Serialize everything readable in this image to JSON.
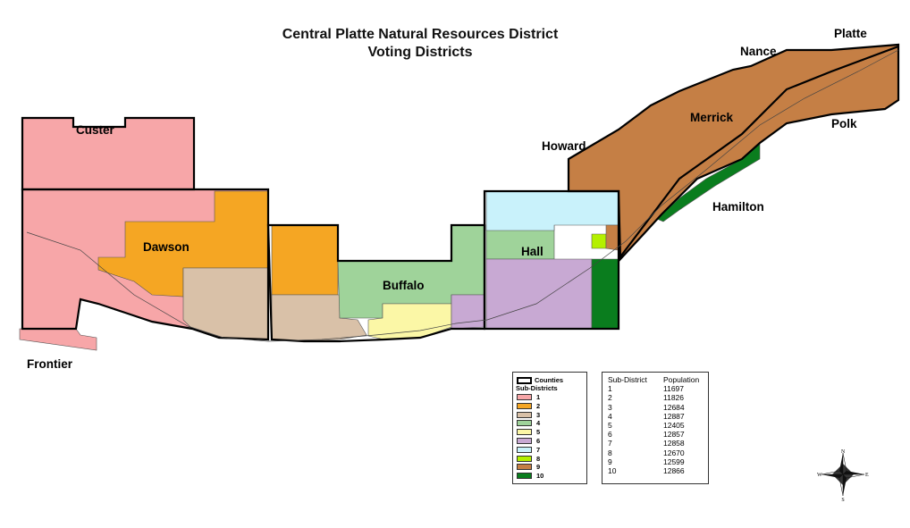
{
  "title": {
    "line1": "Central Platte Natural Resources District",
    "line2": "Voting Districts"
  },
  "counties": {
    "custer": "Custer",
    "dawson": "Dawson",
    "frontier": "Frontier",
    "buffalo": "Buffalo",
    "hall": "Hall",
    "howard": "Howard",
    "merrick": "Merrick",
    "nance": "Nance",
    "platte": "Platte",
    "polk": "Polk",
    "hamilton": "Hamilton"
  },
  "legend": {
    "counties_label": "Counties",
    "subdistricts_label": "Sub-Districts",
    "items": [
      {
        "label": "1",
        "color": "#f7a6a8"
      },
      {
        "label": "2",
        "color": "#f5a623"
      },
      {
        "label": "3",
        "color": "#d9c1a8"
      },
      {
        "label": "4",
        "color": "#9fd39a"
      },
      {
        "label": "5",
        "color": "#fbf7a6"
      },
      {
        "label": "6",
        "color": "#c8a9d3"
      },
      {
        "label": "7",
        "color": "#c9f2fb"
      },
      {
        "label": "8",
        "color": "#b4f000"
      },
      {
        "label": "9",
        "color": "#c57f45"
      },
      {
        "label": "10",
        "color": "#0a7d1e"
      }
    ]
  },
  "population_table": {
    "header": [
      "Sub-District",
      "Population"
    ],
    "rows": [
      [
        "1",
        "11697"
      ],
      [
        "2",
        "11826"
      ],
      [
        "3",
        "12684"
      ],
      [
        "4",
        "12887"
      ],
      [
        "5",
        "12405"
      ],
      [
        "6",
        "12857"
      ],
      [
        "7",
        "12858"
      ],
      [
        "8",
        "12670"
      ],
      [
        "9",
        "12599"
      ],
      [
        "10",
        "12866"
      ]
    ]
  },
  "compass": {
    "n": "N",
    "s": "S",
    "e": "E",
    "w": "W"
  }
}
